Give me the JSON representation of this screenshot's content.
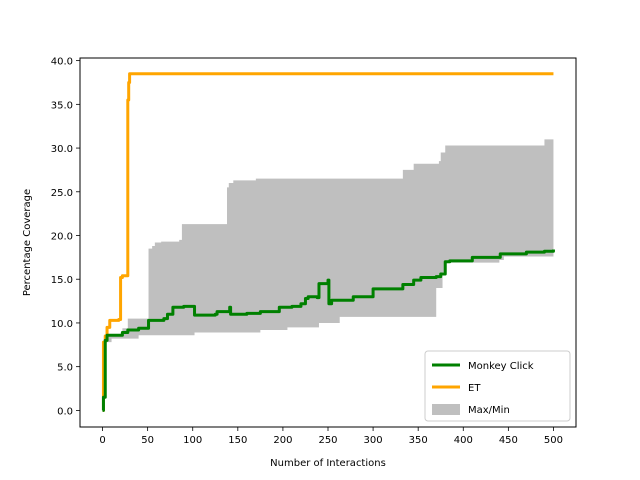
{
  "chart_data": {
    "type": "line",
    "xlabel": "Number of Interactions",
    "ylabel": "Percentage Coverage",
    "xlim": [
      -25,
      525
    ],
    "ylim": [
      -1.9,
      40.3
    ],
    "xticks": [
      0,
      50,
      100,
      150,
      200,
      250,
      300,
      350,
      400,
      450,
      500
    ],
    "yticks": [
      0.0,
      5.0,
      10.0,
      15.0,
      20.0,
      25.0,
      30.0,
      35.0,
      40.0
    ],
    "xtick_labels": [
      "0",
      "50",
      "100",
      "150",
      "200",
      "250",
      "300",
      "350",
      "400",
      "450",
      "500"
    ],
    "ytick_labels": [
      "0.0",
      "5.0",
      "10.0",
      "15.0",
      "20.0",
      "25.0",
      "30.0",
      "35.0",
      "40.0"
    ],
    "grid": false,
    "legend_position": "lower-right",
    "series": [
      {
        "name": "Monkey Click",
        "color": "#008000",
        "kind": "step-line",
        "points": [
          [
            0,
            0
          ],
          [
            1,
            1.5
          ],
          [
            2,
            1.5
          ],
          [
            3,
            8.0
          ],
          [
            5,
            8.6
          ],
          [
            15,
            8.6
          ],
          [
            22,
            8.9
          ],
          [
            28,
            9.2
          ],
          [
            40,
            9.4
          ],
          [
            50,
            9.4
          ],
          [
            51,
            10.3
          ],
          [
            60,
            10.3
          ],
          [
            68,
            10.5
          ],
          [
            72,
            11.0
          ],
          [
            78,
            11.8
          ],
          [
            90,
            11.9
          ],
          [
            100,
            11.9
          ],
          [
            102,
            10.9
          ],
          [
            125,
            11.0
          ],
          [
            127,
            11.3
          ],
          [
            140,
            11.3
          ],
          [
            141,
            11.8
          ],
          [
            142,
            11.0
          ],
          [
            160,
            11.1
          ],
          [
            175,
            11.3
          ],
          [
            195,
            11.3
          ],
          [
            196,
            11.8
          ],
          [
            210,
            11.9
          ],
          [
            220,
            12.2
          ],
          [
            225,
            12.8
          ],
          [
            228,
            13.0
          ],
          [
            238,
            12.9
          ],
          [
            240,
            14.5
          ],
          [
            250,
            14.9
          ],
          [
            251,
            12.2
          ],
          [
            254,
            12.6
          ],
          [
            275,
            12.6
          ],
          [
            278,
            13.0
          ],
          [
            297,
            13.0
          ],
          [
            300,
            13.9
          ],
          [
            330,
            13.9
          ],
          [
            333,
            14.4
          ],
          [
            345,
            14.9
          ],
          [
            350,
            14.9
          ],
          [
            353,
            15.2
          ],
          [
            370,
            15.3
          ],
          [
            375,
            15.6
          ],
          [
            380,
            17.0
          ],
          [
            385,
            17.1
          ],
          [
            400,
            17.1
          ],
          [
            410,
            17.5
          ],
          [
            440,
            17.5
          ],
          [
            441,
            17.9
          ],
          [
            460,
            17.9
          ],
          [
            470,
            18.1
          ],
          [
            490,
            18.2
          ],
          [
            500,
            18.4
          ]
        ]
      },
      {
        "name": "ET",
        "color": "#ffa500",
        "kind": "step-line",
        "points": [
          [
            0,
            0
          ],
          [
            1,
            7.8
          ],
          [
            3,
            8.5
          ],
          [
            5,
            9.5
          ],
          [
            8,
            10.3
          ],
          [
            18,
            10.4
          ],
          [
            20,
            15.2
          ],
          [
            22,
            15.4
          ],
          [
            26,
            15.4
          ],
          [
            28,
            35.5
          ],
          [
            29,
            37.5
          ],
          [
            30,
            38.5
          ],
          [
            500,
            38.5
          ]
        ]
      },
      {
        "name": "Max/Min",
        "color": "#bfbfbf",
        "kind": "band",
        "upper": [
          [
            0,
            0
          ],
          [
            3,
            8.2
          ],
          [
            5,
            8.6
          ],
          [
            20,
            8.8
          ],
          [
            22,
            9.4
          ],
          [
            28,
            10.5
          ],
          [
            50,
            10.5
          ],
          [
            51,
            18.5
          ],
          [
            55,
            18.8
          ],
          [
            58,
            19.2
          ],
          [
            65,
            19.3
          ],
          [
            85,
            19.5
          ],
          [
            88,
            21.3
          ],
          [
            137,
            21.3
          ],
          [
            138,
            25.5
          ],
          [
            140,
            26.0
          ],
          [
            145,
            26.3
          ],
          [
            170,
            26.5
          ],
          [
            315,
            26.5
          ],
          [
            333,
            27.5
          ],
          [
            345,
            28.2
          ],
          [
            373,
            28.5
          ],
          [
            375,
            29.5
          ],
          [
            380,
            30.3
          ],
          [
            470,
            30.3
          ],
          [
            490,
            31.0
          ],
          [
            500,
            31.0
          ]
        ],
        "lower": [
          [
            0,
            0
          ],
          [
            3,
            7.8
          ],
          [
            10,
            8.2
          ],
          [
            30,
            8.2
          ],
          [
            40,
            8.6
          ],
          [
            100,
            8.6
          ],
          [
            102,
            8.9
          ],
          [
            170,
            8.9
          ],
          [
            175,
            9.2
          ],
          [
            200,
            9.2
          ],
          [
            205,
            9.5
          ],
          [
            235,
            9.5
          ],
          [
            240,
            10.0
          ],
          [
            262,
            10.0
          ],
          [
            263,
            10.7
          ],
          [
            367,
            10.7
          ],
          [
            370,
            14.0
          ],
          [
            377,
            15.8
          ],
          [
            380,
            16.9
          ],
          [
            440,
            17.2
          ],
          [
            445,
            17.6
          ],
          [
            500,
            17.6
          ]
        ]
      }
    ]
  }
}
